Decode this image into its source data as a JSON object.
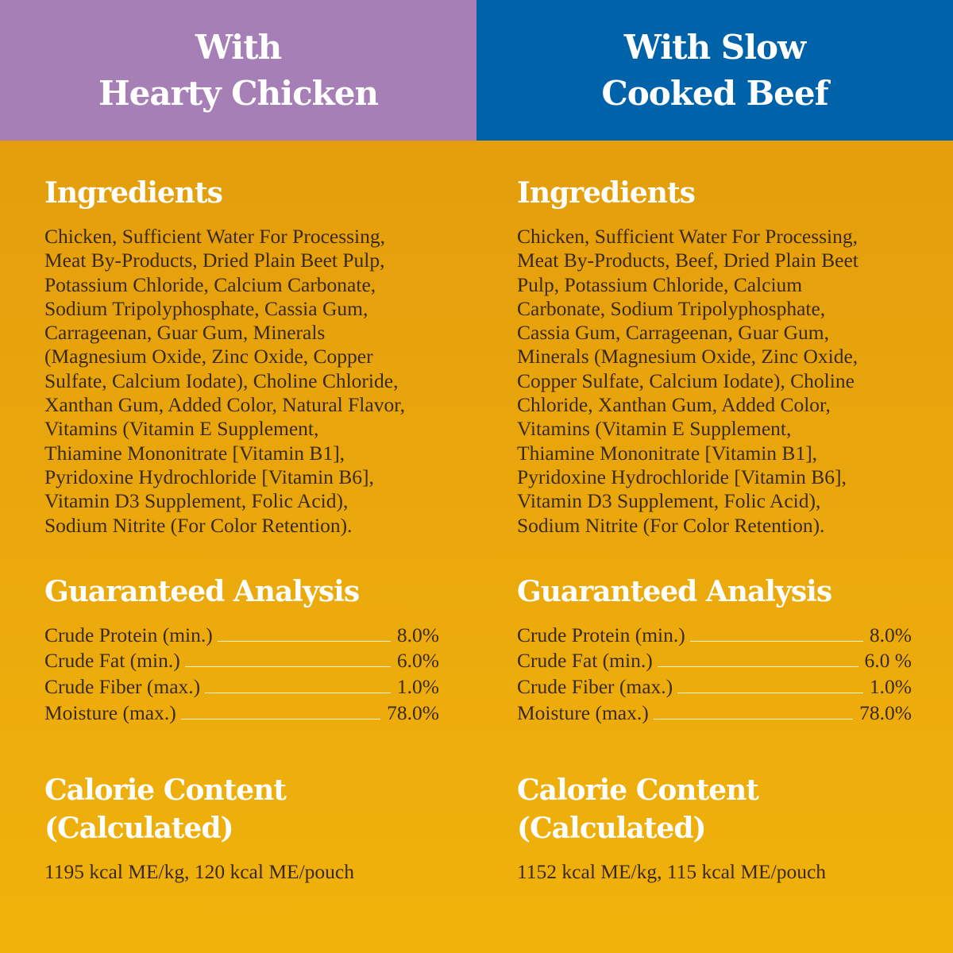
{
  "colors": {
    "chicken_header": "#a57fb5",
    "beef_header": "#0062a9",
    "background": "#eba90c",
    "heading_text": "#ffffff",
    "body_text": "#3b2a17"
  },
  "columns": [
    {
      "title_lines": [
        "With",
        "Hearty Chicken"
      ],
      "ingredients_heading": "Ingredients",
      "ingredients_lines": [
        "Chicken, Sufficient Water For Processing,",
        "Meat By-Products, Dried Plain Beet Pulp,",
        "Potassium Chloride, Calcium Carbonate,",
        "Sodium Tripolyphosphate, Cassia Gum,",
        "Carrageenan, Guar Gum, Minerals",
        "(Magnesium Oxide, Zinc Oxide, Copper",
        "Sulfate, Calcium Iodate), Choline Chloride,",
        "Xanthan Gum, Added Color, Natural Flavor,",
        "Vitamins (Vitamin E Supplement,",
        "Thiamine Mononitrate [Vitamin B1],",
        "Pyridoxine Hydrochloride [Vitamin B6],",
        "Vitamin D3 Supplement, Folic Acid),",
        "Sodium Nitrite (For Color Retention)."
      ],
      "analysis_heading": "Guaranteed Analysis",
      "analysis": [
        {
          "label": "Crude Protein (min.)",
          "value": "8.0%"
        },
        {
          "label": "Crude Fat (min.)",
          "value": "6.0%"
        },
        {
          "label": "Crude Fiber (max.)",
          "value": "1.0%"
        },
        {
          "label": "Moisture (max.)",
          "value": "78.0%"
        }
      ],
      "calorie_heading_lines": [
        "Calorie Content",
        "(Calculated)"
      ],
      "calorie_text": "1195 kcal ME/kg, 120 kcal ME/pouch"
    },
    {
      "title_lines": [
        "With Slow",
        "Cooked Beef"
      ],
      "ingredients_heading": "Ingredients",
      "ingredients_lines": [
        "Chicken, Sufficient Water For Processing,",
        "Meat By-Products, Beef, Dried Plain Beet",
        "Pulp, Potassium Chloride, Calcium",
        "Carbonate, Sodium Tripolyphosphate,",
        "Cassia Gum, Carrageenan, Guar Gum,",
        "Minerals (Magnesium Oxide, Zinc Oxide,",
        "Copper Sulfate, Calcium Iodate), Choline",
        "Chloride, Xanthan Gum, Added Color,",
        "Vitamins (Vitamin E Supplement,",
        "Thiamine Mononitrate [Vitamin B1],",
        "Pyridoxine Hydrochloride [Vitamin B6],",
        "Vitamin D3 Supplement, Folic Acid),",
        "Sodium Nitrite (For Color Retention)."
      ],
      "analysis_heading": "Guaranteed Analysis",
      "analysis": [
        {
          "label": "Crude Protein (min.)",
          "value": "8.0%"
        },
        {
          "label": "Crude Fat (min.)",
          "value": "6.0 %"
        },
        {
          "label": "Crude Fiber (max.)",
          "value": "1.0%"
        },
        {
          "label": "Moisture (max.)",
          "value": "78.0%"
        }
      ],
      "calorie_heading_lines": [
        "Calorie Content",
        "(Calculated)"
      ],
      "calorie_text": "1152  kcal ME/kg, 115 kcal ME/pouch"
    }
  ]
}
